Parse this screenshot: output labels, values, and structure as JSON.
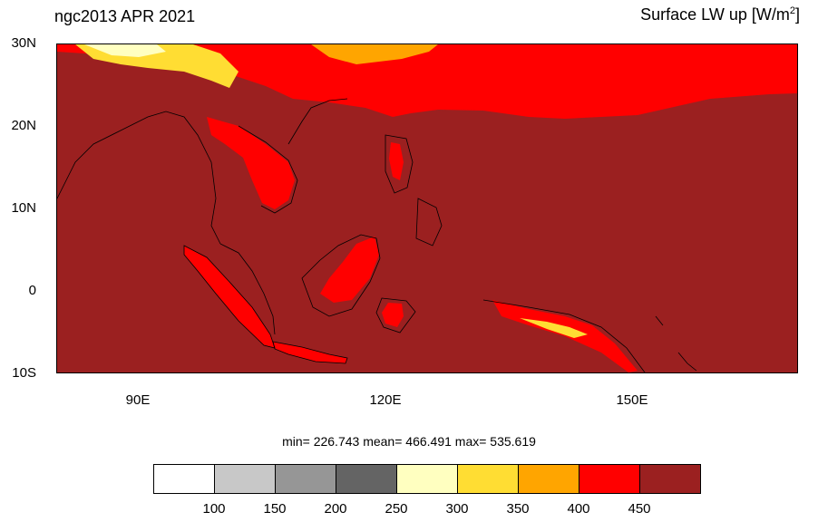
{
  "header": {
    "left_title": "ngc2013 APR 2021",
    "right_title_prefix": "Surface LW up [W/m",
    "right_title_sup": "2",
    "right_title_suffix": "]"
  },
  "axes": {
    "lat_labels": [
      "30N",
      "20N",
      "10N",
      "0",
      "10S"
    ],
    "lon_labels": [
      "90E",
      "120E",
      "150E"
    ]
  },
  "stats": {
    "text": "min= 226.743  mean= 466.491  max= 535.619"
  },
  "colorbar": {
    "colors": [
      "#ffffff",
      "#c8c8c8",
      "#969696",
      "#646464",
      "#ffffc0",
      "#ffdd33",
      "#ffa500",
      "#ff0000",
      "#9b2020"
    ],
    "labels": [
      "100",
      "150",
      "200",
      "250",
      "300",
      "350",
      "400",
      "450"
    ]
  },
  "map": {
    "colors": {
      "ocean": "#9b2020",
      "warm": "#ff0000",
      "orange": "#ffa500",
      "yellow": "#ffdd33",
      "pale": "#ffffc0",
      "coast": "#000000"
    }
  }
}
